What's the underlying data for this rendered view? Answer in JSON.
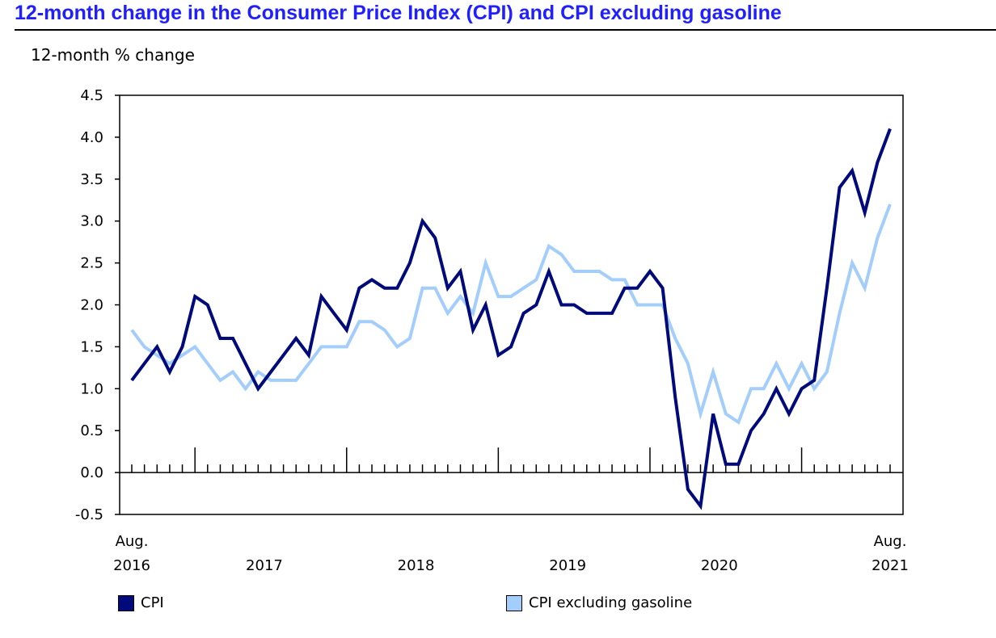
{
  "chart_data": {
    "type": "line",
    "title": "12-month change in the Consumer Price Index (CPI) and CPI excluding gasoline",
    "ylabel": "12-month % change",
    "xlabel": "",
    "ylim": [
      -0.5,
      4.5
    ],
    "yticks": [
      "-0.5",
      "0.0",
      "0.5",
      "1.0",
      "1.5",
      "2.0",
      "2.5",
      "3.0",
      "3.5",
      "4.0",
      "4.5"
    ],
    "x_start": "Aug. 2016",
    "x_end": "Aug. 2021",
    "xtick_labels": [
      {
        "top": "Aug.",
        "bottom": "2016",
        "month_index": 0
      },
      {
        "top": "",
        "bottom": "2017",
        "month_index": 11
      },
      {
        "top": "",
        "bottom": "2018",
        "month_index": 23
      },
      {
        "top": "",
        "bottom": "2019",
        "month_index": 35
      },
      {
        "top": "",
        "bottom": "2020",
        "month_index": 47
      },
      {
        "top": "Aug.",
        "bottom": "2021",
        "month_index": 60
      }
    ],
    "grid": false,
    "legend_position": "bottom",
    "series": [
      {
        "name": "CPI",
        "color": "#000a7a",
        "values": [
          1.1,
          1.3,
          1.5,
          1.2,
          1.5,
          2.1,
          2.0,
          1.6,
          1.6,
          1.3,
          1.0,
          1.2,
          1.4,
          1.6,
          1.4,
          2.1,
          1.9,
          1.7,
          2.2,
          2.3,
          2.2,
          2.2,
          2.5,
          3.0,
          2.8,
          2.2,
          2.4,
          1.7,
          2.0,
          1.4,
          1.5,
          1.9,
          2.0,
          2.4,
          2.0,
          2.0,
          1.9,
          1.9,
          1.9,
          2.2,
          2.2,
          2.4,
          2.2,
          0.9,
          -0.2,
          -0.4,
          0.7,
          0.1,
          0.1,
          0.5,
          0.7,
          1.0,
          0.7,
          1.0,
          1.1,
          2.2,
          3.4,
          3.6,
          3.1,
          3.7,
          4.1
        ]
      },
      {
        "name": "CPI excluding gasoline",
        "color": "#a3cdfa",
        "values": [
          1.7,
          1.5,
          1.4,
          1.3,
          1.4,
          1.5,
          1.3,
          1.1,
          1.2,
          1.0,
          1.2,
          1.1,
          1.1,
          1.1,
          1.3,
          1.5,
          1.5,
          1.5,
          1.8,
          1.8,
          1.7,
          1.5,
          1.6,
          2.2,
          2.2,
          1.9,
          2.1,
          1.9,
          2.5,
          2.1,
          2.1,
          2.2,
          2.3,
          2.7,
          2.6,
          2.4,
          2.4,
          2.4,
          2.3,
          2.3,
          2.0,
          2.0,
          2.0,
          1.6,
          1.3,
          0.7,
          1.2,
          0.7,
          0.6,
          1.0,
          1.0,
          1.3,
          1.0,
          1.3,
          1.0,
          1.2,
          1.9,
          2.5,
          2.2,
          2.8,
          3.2
        ]
      }
    ]
  }
}
